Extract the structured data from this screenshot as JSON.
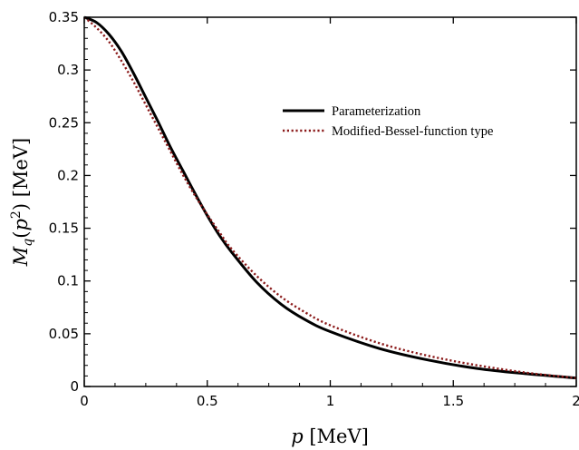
{
  "chart_data": {
    "type": "line",
    "xlabel": "p [MeV]",
    "ylabel": "M_q(p^2) [MeV]",
    "xlim": [
      0,
      2
    ],
    "ylim": [
      0,
      0.35
    ],
    "x_ticks": [
      "0",
      "0.5",
      "1",
      "1.5",
      "2"
    ],
    "y_ticks": [
      "0",
      "0.05",
      "0.1",
      "0.15",
      "0.2",
      "0.25",
      "0.3",
      "0.35"
    ],
    "grid": false,
    "legend_position": "top-right",
    "series": [
      {
        "name": "Parameterization",
        "style": "solid",
        "color": "#000000",
        "x": [
          0,
          0.05,
          0.1,
          0.15,
          0.2,
          0.25,
          0.3,
          0.35,
          0.4,
          0.45,
          0.5,
          0.55,
          0.6,
          0.7,
          0.8,
          0.9,
          1.0,
          1.2,
          1.4,
          1.6,
          1.8,
          2.0
        ],
        "values": [
          0.35,
          0.345,
          0.334,
          0.318,
          0.297,
          0.274,
          0.251,
          0.227,
          0.205,
          0.183,
          0.162,
          0.143,
          0.127,
          0.099,
          0.078,
          0.063,
          0.052,
          0.036,
          0.025,
          0.017,
          0.012,
          0.008
        ]
      },
      {
        "name": "Modified-Bessel-function type",
        "style": "dotted",
        "color": "#8b1a1a",
        "x": [
          0,
          0.05,
          0.1,
          0.15,
          0.2,
          0.25,
          0.3,
          0.35,
          0.4,
          0.45,
          0.5,
          0.55,
          0.6,
          0.7,
          0.8,
          0.9,
          1.0,
          1.2,
          1.4,
          1.6,
          1.8,
          2.0
        ],
        "values": [
          0.35,
          0.34,
          0.327,
          0.309,
          0.289,
          0.267,
          0.245,
          0.223,
          0.201,
          0.181,
          0.163,
          0.146,
          0.13,
          0.105,
          0.085,
          0.07,
          0.058,
          0.041,
          0.029,
          0.02,
          0.013,
          0.008
        ]
      }
    ]
  }
}
